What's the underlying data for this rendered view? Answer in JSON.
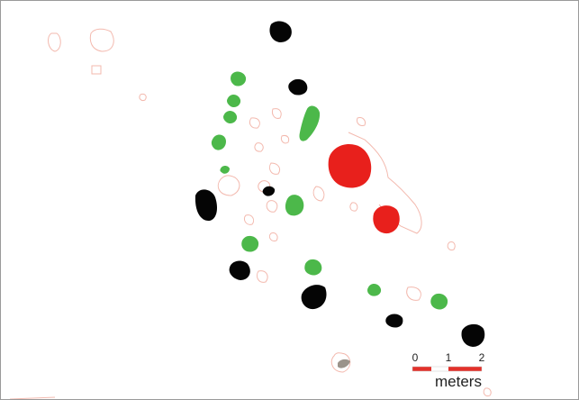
{
  "colors": {
    "black_feature": "#050505",
    "green_feature": "#4cb84a",
    "red_feature": "#e8201c",
    "outline": "#f3b9ae",
    "scale_red": "#e3312b",
    "scale_white": "#ffffff",
    "frame": "#9a9a9a"
  },
  "legend": {
    "scale_labels": [
      "0",
      "1",
      "2"
    ],
    "unit": "meters"
  }
}
